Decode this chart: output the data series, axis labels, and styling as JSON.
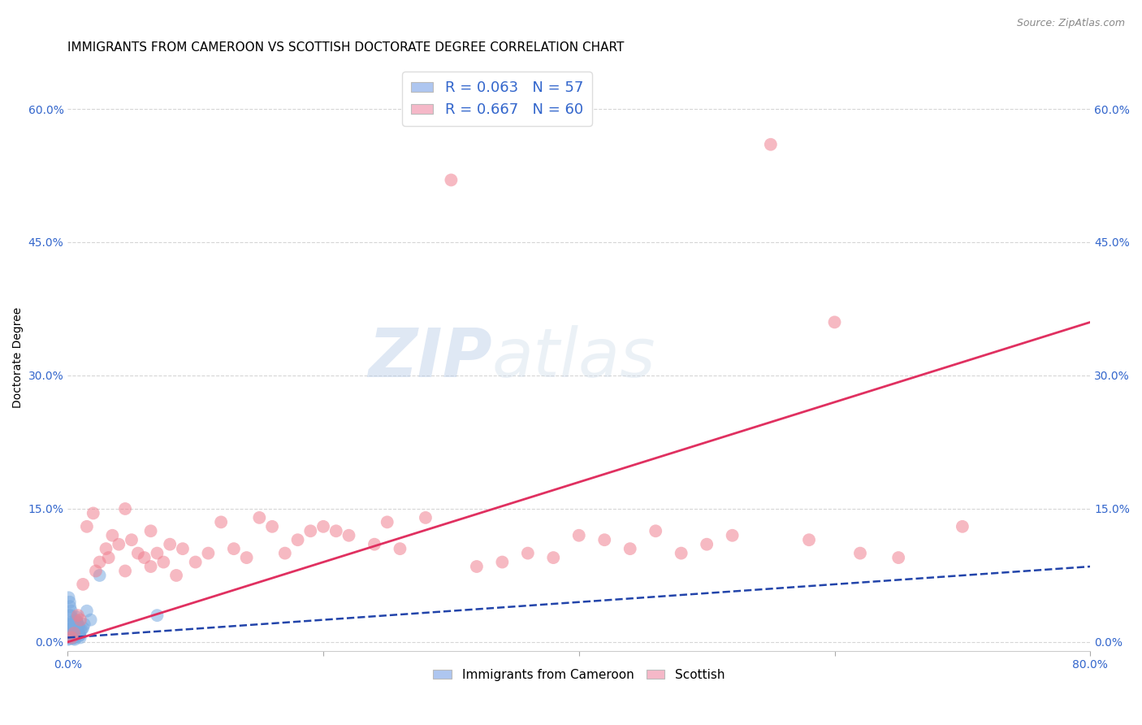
{
  "title": "IMMIGRANTS FROM CAMEROON VS SCOTTISH DOCTORATE DEGREE CORRELATION CHART",
  "source": "Source: ZipAtlas.com",
  "ylabel": "Doctorate Degree",
  "ytick_values": [
    0.0,
    15.0,
    30.0,
    45.0,
    60.0
  ],
  "xlim": [
    0.0,
    80.0
  ],
  "ylim": [
    -1.0,
    65.0
  ],
  "legend_entry1": {
    "color": "#aec6f0",
    "R": "0.063",
    "N": "57"
  },
  "legend_entry2": {
    "color": "#f5b8c8",
    "R": "0.667",
    "N": "60"
  },
  "legend_text_color": "#3366cc",
  "scatter_blue_color": "#7aaae0",
  "scatter_pink_color": "#f08090",
  "line_blue_color": "#2244aa",
  "line_pink_color": "#e03060",
  "grid_color": "#cccccc",
  "background_color": "#ffffff",
  "watermark_zip": "ZIP",
  "watermark_atlas": "atlas",
  "title_fontsize": 11,
  "axis_label_fontsize": 10,
  "tick_fontsize": 10,
  "blue_points_x": [
    0.1,
    0.2,
    0.3,
    0.4,
    0.5,
    0.6,
    0.7,
    0.8,
    0.9,
    1.0,
    0.15,
    0.25,
    0.35,
    0.45,
    0.55,
    0.65,
    0.75,
    0.85,
    0.95,
    1.1,
    0.12,
    0.22,
    0.32,
    0.42,
    0.52,
    0.62,
    0.72,
    0.82,
    0.92,
    1.2,
    0.18,
    0.28,
    0.38,
    0.48,
    0.58,
    0.68,
    0.78,
    0.88,
    0.98,
    1.3,
    0.08,
    0.16,
    0.24,
    0.33,
    0.43,
    0.53,
    0.63,
    0.73,
    1.5,
    1.8,
    2.5,
    0.05,
    0.11,
    0.19,
    7.0,
    0.14,
    0.29
  ],
  "blue_points_y": [
    1.0,
    0.5,
    0.8,
    1.2,
    0.6,
    1.5,
    0.9,
    1.1,
    0.7,
    1.3,
    2.0,
    1.8,
    1.5,
    0.4,
    0.3,
    2.5,
    1.7,
    1.0,
    0.8,
    1.4,
    3.0,
    2.2,
    1.6,
    0.5,
    0.6,
    1.9,
    2.8,
    1.2,
    0.9,
    1.6,
    4.0,
    3.5,
    2.0,
    1.0,
    0.7,
    1.3,
    2.1,
    1.8,
    0.5,
    2.0,
    5.0,
    4.5,
    3.0,
    1.5,
    0.8,
    0.6,
    1.1,
    2.3,
    3.5,
    2.5,
    7.5,
    0.3,
    0.4,
    1.0,
    3.0,
    0.6,
    0.5
  ],
  "pink_points_x": [
    0.5,
    1.0,
    1.5,
    2.0,
    2.5,
    3.0,
    3.5,
    4.0,
    4.5,
    5.0,
    5.5,
    6.0,
    6.5,
    7.0,
    7.5,
    8.0,
    9.0,
    10.0,
    11.0,
    12.0,
    13.0,
    14.0,
    15.0,
    16.0,
    17.0,
    18.0,
    19.0,
    20.0,
    22.0,
    24.0,
    26.0,
    28.0,
    30.0,
    32.0,
    34.0,
    36.0,
    38.0,
    40.0,
    42.0,
    44.0,
    46.0,
    48.0,
    50.0,
    52.0,
    55.0,
    58.0,
    62.0,
    65.0,
    70.0,
    0.3,
    0.8,
    1.2,
    2.2,
    3.2,
    4.5,
    6.5,
    8.5,
    21.0,
    25.0,
    60.0
  ],
  "pink_points_y": [
    1.0,
    2.5,
    13.0,
    14.5,
    9.0,
    10.5,
    12.0,
    11.0,
    8.0,
    11.5,
    10.0,
    9.5,
    8.5,
    10.0,
    9.0,
    11.0,
    10.5,
    9.0,
    10.0,
    13.5,
    10.5,
    9.5,
    14.0,
    13.0,
    10.0,
    11.5,
    12.5,
    13.0,
    12.0,
    11.0,
    10.5,
    14.0,
    52.0,
    8.5,
    9.0,
    10.0,
    9.5,
    12.0,
    11.5,
    10.5,
    12.5,
    10.0,
    11.0,
    12.0,
    56.0,
    11.5,
    10.0,
    9.5,
    13.0,
    0.5,
    3.0,
    6.5,
    8.0,
    9.5,
    15.0,
    12.5,
    7.5,
    12.5,
    13.5,
    36.0
  ],
  "blue_line_x": [
    0.0,
    80.0
  ],
  "blue_line_y": [
    0.5,
    8.5
  ],
  "pink_line_x": [
    0.0,
    80.0
  ],
  "pink_line_y": [
    0.0,
    36.0
  ]
}
